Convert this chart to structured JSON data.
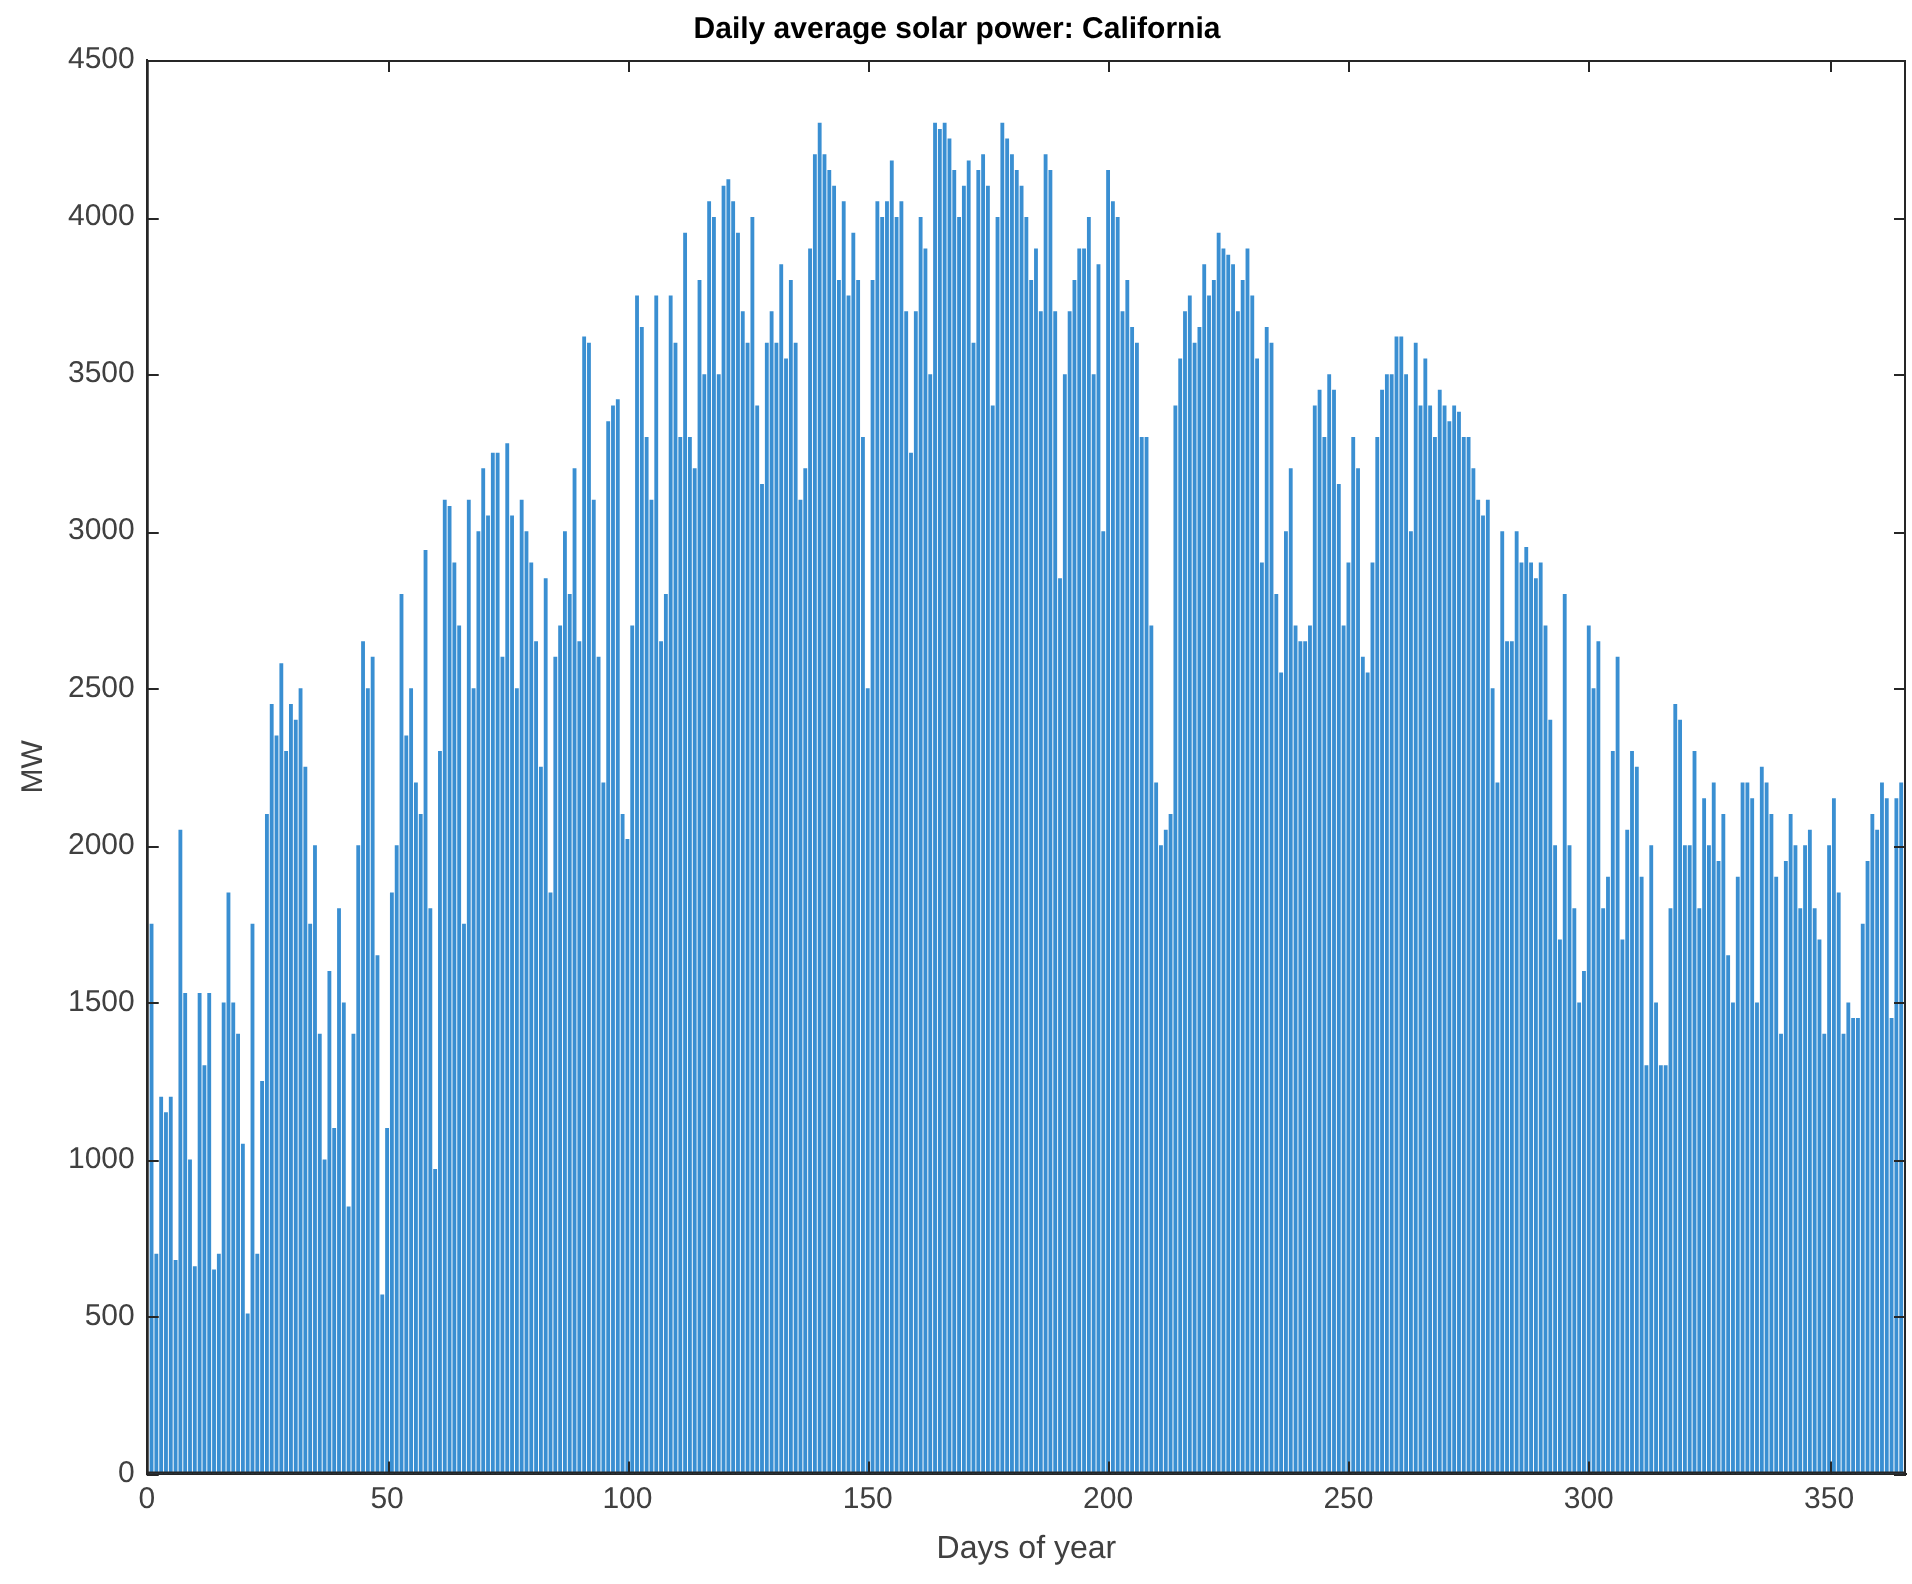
{
  "chart_data": {
    "type": "bar",
    "title": "Daily average solar power: California",
    "xlabel": "Days of year",
    "ylabel": "MW",
    "color": "#3a8fd2",
    "xlim": [
      0,
      366
    ],
    "xticks": [
      0,
      50,
      100,
      150,
      200,
      250,
      300,
      350
    ],
    "ylim": [
      0,
      4500
    ],
    "yticks": [
      0,
      500,
      1000,
      1500,
      2000,
      2500,
      3000,
      3500,
      4000,
      4500
    ],
    "x": [
      1,
      2,
      3,
      4,
      5,
      6,
      7,
      8,
      9,
      10,
      11,
      12,
      13,
      14,
      15,
      16,
      17,
      18,
      19,
      20,
      21,
      22,
      23,
      24,
      25,
      26,
      27,
      28,
      29,
      30,
      31,
      32,
      33,
      34,
      35,
      36,
      37,
      38,
      39,
      40,
      41,
      42,
      43,
      44,
      45,
      46,
      47,
      48,
      49,
      50,
      51,
      52,
      53,
      54,
      55,
      56,
      57,
      58,
      59,
      60,
      61,
      62,
      63,
      64,
      65,
      66,
      67,
      68,
      69,
      70,
      71,
      72,
      73,
      74,
      75,
      76,
      77,
      78,
      79,
      80,
      81,
      82,
      83,
      84,
      85,
      86,
      87,
      88,
      89,
      90,
      91,
      92,
      93,
      94,
      95,
      96,
      97,
      98,
      99,
      100,
      101,
      102,
      103,
      104,
      105,
      106,
      107,
      108,
      109,
      110,
      111,
      112,
      113,
      114,
      115,
      116,
      117,
      118,
      119,
      120,
      121,
      122,
      123,
      124,
      125,
      126,
      127,
      128,
      129,
      130,
      131,
      132,
      133,
      134,
      135,
      136,
      137,
      138,
      139,
      140,
      141,
      142,
      143,
      144,
      145,
      146,
      147,
      148,
      149,
      150,
      151,
      152,
      153,
      154,
      155,
      156,
      157,
      158,
      159,
      160,
      161,
      162,
      163,
      164,
      165,
      166,
      167,
      168,
      169,
      170,
      171,
      172,
      173,
      174,
      175,
      176,
      177,
      178,
      179,
      180,
      181,
      182,
      183,
      184,
      185,
      186,
      187,
      188,
      189,
      190,
      191,
      192,
      193,
      194,
      195,
      196,
      197,
      198,
      199,
      200,
      201,
      202,
      203,
      204,
      205,
      206,
      207,
      208,
      209,
      210,
      211,
      212,
      213,
      214,
      215,
      216,
      217,
      218,
      219,
      220,
      221,
      222,
      223,
      224,
      225,
      226,
      227,
      228,
      229,
      230,
      231,
      232,
      233,
      234,
      235,
      236,
      237,
      238,
      239,
      240,
      241,
      242,
      243,
      244,
      245,
      246,
      247,
      248,
      249,
      250,
      251,
      252,
      253,
      254,
      255,
      256,
      257,
      258,
      259,
      260,
      261,
      262,
      263,
      264,
      265,
      266,
      267,
      268,
      269,
      270,
      271,
      272,
      273,
      274,
      275,
      276,
      277,
      278,
      279,
      280,
      281,
      282,
      283,
      284,
      285,
      286,
      287,
      288,
      289,
      290,
      291,
      292,
      293,
      294,
      295,
      296,
      297,
      298,
      299,
      300,
      301,
      302,
      303,
      304,
      305,
      306,
      307,
      308,
      309,
      310,
      311,
      312,
      313,
      314,
      315,
      316,
      317,
      318,
      319,
      320,
      321,
      322,
      323,
      324,
      325,
      326,
      327,
      328,
      329,
      330,
      331,
      332,
      333,
      334,
      335,
      336,
      337,
      338,
      339,
      340,
      341,
      342,
      343,
      344,
      345,
      346,
      347,
      348,
      349,
      350,
      351,
      352,
      353,
      354,
      355,
      356,
      357,
      358,
      359,
      360,
      361,
      362,
      363,
      364,
      365
    ],
    "values": [
      1750,
      700,
      1200,
      1150,
      1200,
      680,
      2050,
      1530,
      1000,
      660,
      1530,
      1300,
      1530,
      650,
      700,
      1500,
      1850,
      1500,
      1400,
      1050,
      510,
      1750,
      700,
      1250,
      2100,
      2450,
      2350,
      2580,
      2300,
      2450,
      2400,
      2500,
      2250,
      1750,
      2000,
      1400,
      1000,
      1600,
      1100,
      1800,
      1500,
      850,
      1400,
      2000,
      2650,
      2500,
      2600,
      1650,
      570,
      1100,
      1850,
      2000,
      2800,
      2350,
      2500,
      2200,
      2100,
      2940,
      1800,
      970,
      2300,
      3100,
      3080,
      2900,
      2700,
      1750,
      3100,
      2500,
      3000,
      3200,
      3050,
      3250,
      3250,
      2600,
      3280,
      3050,
      2500,
      3100,
      3000,
      2900,
      2650,
      2250,
      2850,
      1850,
      2600,
      2700,
      3000,
      2800,
      3200,
      2650,
      3620,
      3600,
      3100,
      2600,
      2200,
      3350,
      3400,
      3420,
      2100,
      2020,
      2700,
      3750,
      3650,
      3300,
      3100,
      3750,
      2650,
      2800,
      3750,
      3600,
      3300,
      3950,
      3300,
      3200,
      3800,
      3500,
      4050,
      4000,
      3500,
      4100,
      4120,
      4050,
      3950,
      3700,
      3600,
      4000,
      3400,
      3150,
      3600,
      3700,
      3600,
      3850,
      3550,
      3800,
      3600,
      3100,
      3200,
      3900,
      4200,
      4300,
      4200,
      4150,
      4100,
      3800,
      4050,
      3750,
      3950,
      3800,
      3300,
      2500,
      3800,
      4050,
      4000,
      4050,
      4180,
      4000,
      4050,
      3700,
      3250,
      3700,
      4000,
      3900,
      3500,
      4300,
      4280,
      4300,
      4250,
      4150,
      4000,
      4100,
      4180,
      3600,
      4150,
      4200,
      4100,
      3400,
      4000,
      4300,
      4250,
      4200,
      4150,
      4100,
      4000,
      3800,
      3900,
      3700,
      4200,
      4150,
      3700,
      2850,
      3500,
      3700,
      3800,
      3900,
      3900,
      4000,
      3500,
      3850,
      3000,
      4150,
      4050,
      4000,
      3700,
      3800,
      3650,
      3600,
      3300,
      3300,
      2700,
      2200,
      2000,
      2050,
      2100,
      3400,
      3550,
      3700,
      3750,
      3600,
      3650,
      3850,
      3750,
      3800,
      3950,
      3900,
      3880,
      3850,
      3700,
      3800,
      3900,
      3750,
      3550,
      2900,
      3650,
      3600,
      2800,
      2550,
      3000,
      3200,
      2700,
      2650,
      2650,
      2700,
      3400,
      3450,
      3300,
      3500,
      3450,
      3150,
      2700,
      2900,
      3300,
      3200,
      2600,
      2550,
      2900,
      3300,
      3450,
      3500,
      3500,
      3620,
      3620,
      3500,
      3000,
      3600,
      3400,
      3550,
      3400,
      3300,
      3450,
      3400,
      3350,
      3400,
      3380,
      3300,
      3300,
      3200,
      3100,
      3050,
      3100,
      2500,
      2200,
      3000,
      2650,
      2650,
      3000,
      2900,
      2950,
      2900,
      2850,
      2900,
      2700,
      2400,
      2000,
      1700,
      2800,
      2000,
      1800,
      1500,
      1600,
      2700,
      2500,
      2650,
      1800,
      1900,
      2300,
      2600,
      1700,
      2050,
      2300,
      2250,
      1900,
      1300,
      2000,
      1500,
      1300,
      1300,
      1800,
      2450,
      2400,
      2000,
      2000,
      2300,
      1800,
      2150,
      2000,
      2200,
      1950,
      2100,
      1650,
      1500,
      1900,
      2200,
      2200,
      2150,
      1500,
      2250,
      2200,
      2100,
      1900,
      1400,
      1950,
      2100,
      2000,
      1800,
      2000,
      2050,
      1800,
      1700,
      1400,
      2000,
      2150,
      1850,
      1400,
      1500,
      1450,
      1450,
      1750,
      1950,
      2100,
      2050,
      2200,
      2150,
      1450,
      2150,
      2200
    ]
  }
}
